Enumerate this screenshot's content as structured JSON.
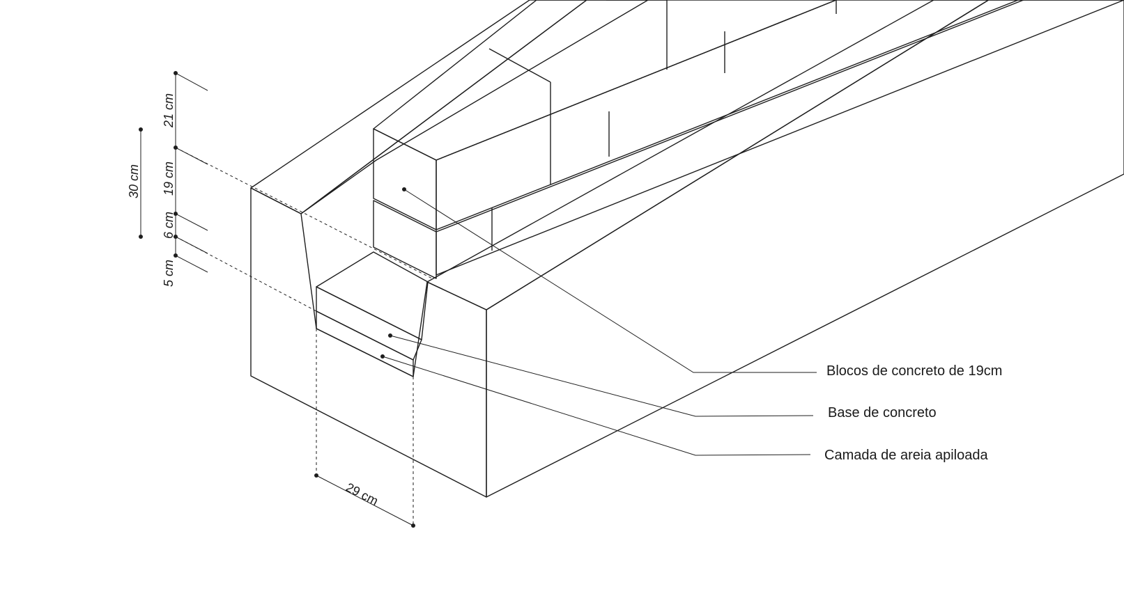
{
  "colors": {
    "soil_front": "#85694b",
    "soil_side": "#765d43",
    "soil_top": "#836849",
    "block_light": "#a8a8a8",
    "block_mid": "#9a9a9a",
    "block_dark": "#8b8b8b",
    "sand": "#6f6352",
    "line": "#1e1e1e"
  },
  "callouts": {
    "blocks": "Blocos de concreto de 19cm",
    "base": "Base de concreto",
    "sand": "Camada de areia apiloada"
  },
  "dimensions": {
    "d21": "21 cm",
    "d19": "19 cm",
    "d6": "6 cm",
    "d5": "5 cm",
    "d30": "30 cm",
    "d29": "29 cm"
  }
}
